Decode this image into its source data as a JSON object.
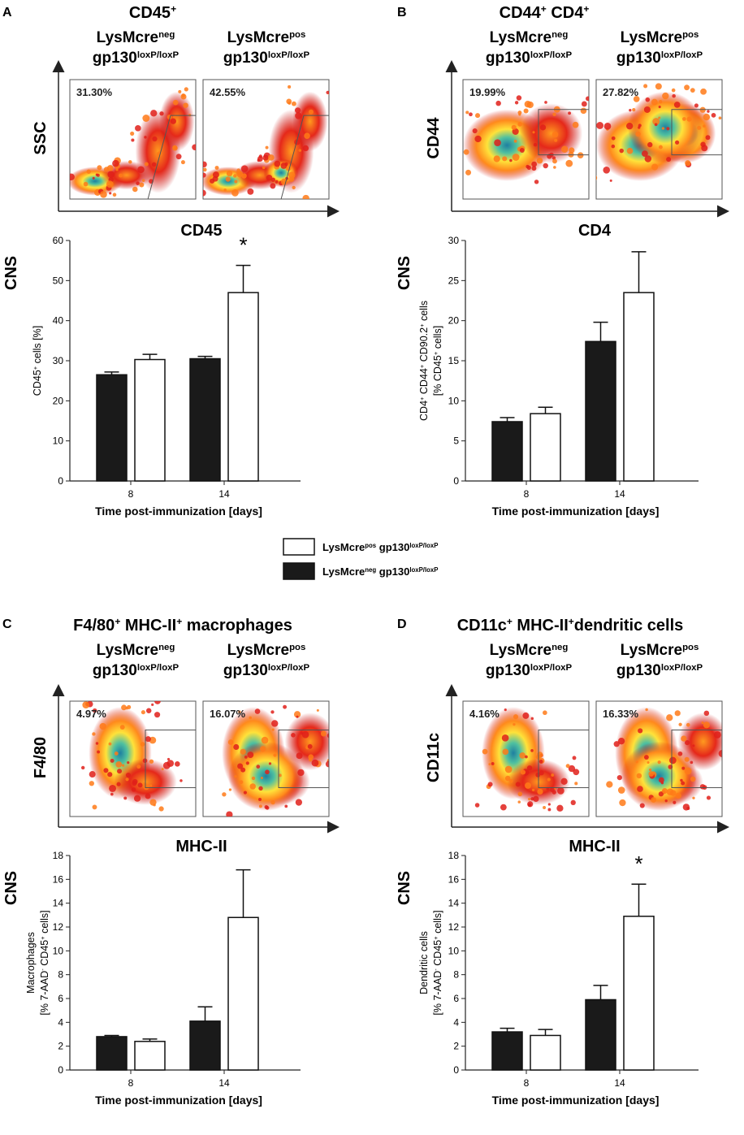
{
  "legend": {
    "pos_label": "LysMcre",
    "pos_sup": "pos",
    "pos_rest": " gp130",
    "pos_rest_sup": "loxP/loxP",
    "neg_label": "LysMcre",
    "neg_sup": "neg",
    "neg_rest": " gp130",
    "neg_rest_sup": "loxP/loxP"
  },
  "colors": {
    "neg": "#1a1a1a",
    "pos": "#ffffff",
    "heat_low": "#cc0000",
    "heat_mid": "#ffcc00",
    "heat_high": "#2a8a9a"
  },
  "group_neg": {
    "line1": "LysMcre",
    "line1_sup": "neg",
    "line2": "gp130",
    "line2_sup": "loxP/loxP"
  },
  "group_pos": {
    "line1": "LysMcre",
    "line1_sup": "pos",
    "line2": "gp130",
    "line2_sup": "loxP/loxP"
  },
  "panels": [
    {
      "letter": "A",
      "title": "CD45",
      "title_sup": "+",
      "y_marker": "SSC",
      "x_marker": "CD45",
      "pct_neg": "31.30%",
      "pct_pos": "42.55%",
      "cns": "CNS"
    },
    {
      "letter": "B",
      "title": "CD44",
      "title_sup": "+",
      "title2": " CD4",
      "title2_sup": "+",
      "y_marker": "CD44",
      "x_marker": "CD4",
      "pct_neg": "19.99%",
      "pct_pos": "27.82%",
      "cns": "CNS"
    },
    {
      "letter": "C",
      "title": "F4/80",
      "title_sup": "+",
      "title2": " MHC-II",
      "title2_sup": "+",
      "title3": " macrophages",
      "y_marker": "F4/80",
      "x_marker": "MHC-II",
      "pct_neg": "4.97%",
      "pct_pos": "16.07%",
      "cns": "CNS"
    },
    {
      "letter": "D",
      "title": "CD11c",
      "title_sup": "+",
      "title2": " MHC-II",
      "title2_sup": "+",
      "title3": "dendritic cells",
      "y_marker": "CD11c",
      "x_marker": "MHC-II",
      "pct_neg": "4.16%",
      "pct_pos": "16.33%",
      "cns": "CNS"
    }
  ],
  "chart_data": [
    {
      "type": "bar",
      "panel": "A",
      "categories": [
        "8",
        "14"
      ],
      "series": [
        {
          "name": "LysMcre neg gp130 loxP/loxP",
          "values": [
            26.5,
            30.5
          ],
          "errors": [
            0.7,
            0.6
          ]
        },
        {
          "name": "LysMcre pos gp130 loxP/loxP",
          "values": [
            30.3,
            47.0
          ],
          "errors": [
            1.3,
            6.8
          ]
        }
      ],
      "ylim": [
        0,
        60
      ],
      "yticks": [
        "0",
        "10",
        "20",
        "30",
        "40",
        "50",
        "60"
      ],
      "xlabel": "Time post-immunization [days]",
      "ylabel": "CD45+ cells [%]",
      "significance": "*"
    },
    {
      "type": "bar",
      "panel": "B",
      "categories": [
        "8",
        "14"
      ],
      "series": [
        {
          "name": "LysMcre neg gp130 loxP/loxP",
          "values": [
            7.4,
            17.4
          ],
          "errors": [
            0.5,
            2.4
          ]
        },
        {
          "name": "LysMcre pos gp130 loxP/loxP",
          "values": [
            8.4,
            23.5
          ],
          "errors": [
            0.8,
            5.1
          ]
        }
      ],
      "ylim": [
        0,
        30
      ],
      "yticks": [
        "0",
        "5",
        "10",
        "15",
        "20",
        "25",
        "30"
      ],
      "xlabel": "Time post-immunization [days]",
      "ylabel": "CD4+ CD44+ CD90.2+ cells [% CD45+ cells]",
      "significance": ""
    },
    {
      "type": "bar",
      "panel": "C",
      "categories": [
        "8",
        "14"
      ],
      "series": [
        {
          "name": "LysMcre neg gp130 loxP/loxP",
          "values": [
            2.8,
            4.1
          ],
          "errors": [
            0.1,
            1.2
          ]
        },
        {
          "name": "LysMcre pos gp130 loxP/loxP",
          "values": [
            2.4,
            12.8
          ],
          "errors": [
            0.2,
            4.0
          ]
        }
      ],
      "ylim": [
        0,
        18
      ],
      "yticks": [
        "0",
        "2",
        "4",
        "6",
        "8",
        "10",
        "12",
        "14",
        "16",
        "18"
      ],
      "xlabel": "Time post-immunization [days]",
      "ylabel": "Macrophages [% 7-AAD- CD45+ cells]",
      "significance": ""
    },
    {
      "type": "bar",
      "panel": "D",
      "categories": [
        "8",
        "14"
      ],
      "series": [
        {
          "name": "LysMcre neg gp130 loxP/loxP",
          "values": [
            3.2,
            5.9
          ],
          "errors": [
            0.3,
            1.2
          ]
        },
        {
          "name": "LysMcre pos gp130 loxP/loxP",
          "values": [
            2.9,
            12.9
          ],
          "errors": [
            0.5,
            2.7
          ]
        }
      ],
      "ylim": [
        0,
        18
      ],
      "yticks": [
        "0",
        "2",
        "4",
        "6",
        "8",
        "10",
        "12",
        "14",
        "16",
        "18"
      ],
      "xlabel": "Time post-immunization [days]",
      "ylabel": "Dendritic cells [% 7-AAD- CD45+ cells]",
      "significance": "*"
    }
  ]
}
